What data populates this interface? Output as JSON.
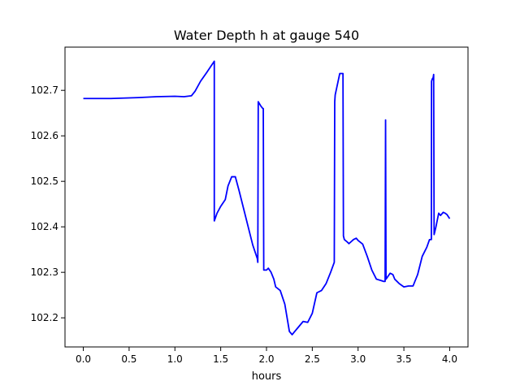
{
  "chart_data": {
    "type": "line",
    "title": "Water Depth h at gauge 540",
    "xlabel": "hours",
    "ylabel": "",
    "xlim": [
      -0.2,
      4.2
    ],
    "ylim": [
      102.136,
      102.795
    ],
    "xticks": [
      0.0,
      0.5,
      1.0,
      1.5,
      2.0,
      2.5,
      3.0,
      3.5,
      4.0
    ],
    "xtick_labels": [
      "0.0",
      "0.5",
      "1.0",
      "1.5",
      "2.0",
      "2.5",
      "3.0",
      "3.5",
      "4.0"
    ],
    "yticks": [
      102.2,
      102.3,
      102.4,
      102.5,
      102.6,
      102.7
    ],
    "ytick_labels": [
      "102.2",
      "102.3",
      "102.4",
      "102.5",
      "102.6",
      "102.7"
    ],
    "grid": false,
    "series": [
      {
        "color": "#0000ff",
        "x": [
          0.0,
          0.3,
          0.6,
          0.8,
          1.0,
          1.1,
          1.18,
          1.22,
          1.28,
          1.35,
          1.4,
          1.43,
          1.43,
          1.46,
          1.5,
          1.55,
          1.58,
          1.62,
          1.66,
          1.7,
          1.75,
          1.8,
          1.85,
          1.9,
          1.905,
          1.91,
          1.94,
          1.96,
          1.965,
          1.97,
          1.98,
          2.0,
          2.02,
          2.05,
          2.08,
          2.1,
          2.15,
          2.2,
          2.25,
          2.28,
          2.3,
          2.35,
          2.4,
          2.45,
          2.5,
          2.55,
          2.6,
          2.65,
          2.7,
          2.74,
          2.745,
          2.75,
          2.8,
          2.82,
          2.835,
          2.84,
          2.85,
          2.88,
          2.9,
          2.95,
          2.98,
          3.0,
          3.05,
          3.1,
          3.15,
          3.2,
          3.25,
          3.28,
          3.295,
          3.3,
          3.305,
          3.35,
          3.38,
          3.4,
          3.45,
          3.5,
          3.55,
          3.6,
          3.65,
          3.7,
          3.75,
          3.78,
          3.8,
          3.802,
          3.81,
          3.82,
          3.825,
          3.83,
          3.85,
          3.88,
          3.9,
          3.93,
          3.95,
          3.97,
          4.0
        ],
        "y": [
          102.682,
          102.682,
          102.684,
          102.686,
          102.687,
          102.686,
          102.688,
          102.698,
          102.72,
          102.74,
          102.755,
          102.764,
          102.413,
          102.43,
          102.445,
          102.46,
          102.49,
          102.51,
          102.51,
          102.48,
          102.44,
          102.4,
          102.36,
          102.33,
          102.322,
          102.675,
          102.665,
          102.66,
          102.66,
          102.305,
          102.305,
          102.305,
          102.309,
          102.3,
          102.285,
          102.268,
          102.26,
          102.23,
          102.17,
          102.163,
          102.168,
          102.18,
          102.192,
          102.19,
          102.21,
          102.255,
          102.26,
          102.275,
          102.3,
          102.322,
          102.675,
          102.69,
          102.737,
          102.737,
          102.737,
          102.38,
          102.372,
          102.367,
          102.363,
          102.372,
          102.375,
          102.37,
          102.362,
          102.335,
          102.305,
          102.285,
          102.282,
          102.28,
          102.28,
          102.635,
          102.285,
          102.298,
          102.295,
          102.285,
          102.275,
          102.268,
          102.27,
          102.27,
          102.295,
          102.335,
          102.355,
          102.372,
          102.372,
          102.72,
          102.725,
          102.728,
          102.735,
          102.383,
          102.4,
          102.43,
          102.425,
          102.432,
          102.43,
          102.427,
          102.418
        ]
      }
    ]
  }
}
